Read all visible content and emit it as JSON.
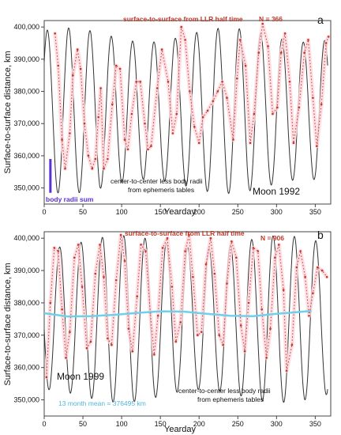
{
  "chart_data": [
    {
      "type": "line",
      "panel_label": "a",
      "title": "Moon 1992",
      "xlabel": "Yearday",
      "ylabel": "Surface-to-surface distance, km",
      "xlim": [
        0,
        370
      ],
      "ylim": [
        345000,
        402000
      ],
      "xticks": [
        "0",
        "50",
        "100",
        "150",
        "200",
        "250",
        "300",
        "350"
      ],
      "yticks": [
        "350,000",
        "360,000",
        "370,000",
        "380,000",
        "390,000",
        "400,000"
      ],
      "llr_label": "surface-to-surface from LLR half time",
      "n_label": "N = 366",
      "ephem_label_lines": [
        "center-to-center less body radii",
        "from ephemeris tables"
      ],
      "radii_label": "body radii sum",
      "radii_bar": {
        "x": 8,
        "y_from": 348500,
        "y_to": 359000
      },
      "series": [
        {
          "model": {
            "mean": 374000,
            "amp": 23500,
            "period": 27.55,
            "phase": 4,
            "amp_mod": 2200,
            "amp_mod_period": 206,
            "amp_mod_phase": 30
          }
        },
        {
          "points": [
            [
              14,
              398000
            ],
            [
              18,
              388000
            ],
            [
              23,
              365000
            ],
            [
              27,
              356000
            ],
            [
              33,
              367000
            ],
            [
              37,
              385000
            ],
            [
              43,
              393000
            ],
            [
              47,
              387000
            ],
            [
              52,
              370000
            ],
            [
              57,
              360000
            ],
            [
              62,
              356000
            ],
            [
              66,
              359000
            ],
            [
              70,
              372000
            ],
            [
              73,
              381000
            ],
            [
              77,
              356000
            ],
            [
              82,
              359000
            ],
            [
              88,
              376000
            ],
            [
              93,
              388000
            ],
            [
              98,
              387000
            ],
            [
              104,
              365000
            ],
            [
              108,
              362000
            ],
            [
              113,
              373000
            ],
            [
              119,
              383000
            ],
            [
              124,
              383000
            ],
            [
              130,
              370000
            ],
            [
              134,
              362000
            ],
            [
              138,
              363000
            ],
            [
              146,
              381000
            ],
            [
              152,
              393000
            ],
            [
              160,
              383000
            ],
            [
              166,
              367000
            ],
            [
              171,
              373000
            ],
            [
              177,
              400000
            ],
            [
              182,
              396000
            ],
            [
              188,
              380000
            ],
            [
              194,
              369000
            ],
            [
              200,
              364000
            ],
            [
              205,
              372000
            ],
            [
              211,
              374000
            ],
            [
              218,
              377000
            ],
            [
              224,
              380000
            ],
            [
              230,
              383000
            ],
            [
              236,
              378000
            ],
            [
              244,
              365000
            ],
            [
              249,
              384000
            ],
            [
              253,
              396000
            ],
            [
              260,
              388000
            ],
            [
              266,
              364000
            ],
            [
              271,
              373000
            ],
            [
              277,
              392000
            ],
            [
              282,
              401000
            ],
            [
              289,
              394000
            ],
            [
              295,
              373000
            ],
            [
              301,
              375000
            ],
            [
              306,
              392000
            ],
            [
              311,
              398000
            ],
            [
              317,
              383000
            ],
            [
              322,
              364000
            ],
            [
              329,
              375000
            ],
            [
              336,
              392000
            ],
            [
              341,
              396000
            ],
            [
              347,
              378000
            ],
            [
              352,
              363000
            ],
            [
              358,
              376000
            ],
            [
              364,
              395000
            ],
            [
              367,
              397000
            ]
          ]
        }
      ]
    },
    {
      "type": "line",
      "panel_label": "b",
      "title": "Moon 1999",
      "xlabel": "Yearday",
      "ylabel": "Surface-to-surface distance, km",
      "xlim": [
        0,
        370
      ],
      "ylim": [
        345000,
        402000
      ],
      "xticks": [
        "0",
        "50",
        "100",
        "150",
        "200",
        "250",
        "300",
        "350"
      ],
      "yticks": [
        "350,000",
        "360,000",
        "370,000",
        "380,000",
        "390,000",
        "400,000"
      ],
      "llr_label": "surface-to-surface from LLR half time",
      "n_label": "N = 906",
      "ephem_label_lines": [
        "center-to-center less body radii",
        "from ephemeris tables"
      ],
      "mean_label": "13 month mean = 376495 km",
      "series": [
        {
          "model": {
            "mean": 375000,
            "amp": 23800,
            "period": 27.55,
            "phase": 20,
            "amp_mod": 2000,
            "amp_mod_period": 206,
            "amp_mod_phase": 100
          }
        },
        {
          "points": [
            [
              3,
              357000
            ],
            [
              8,
              380000
            ],
            [
              13,
              397000
            ],
            [
              18,
              396000
            ],
            [
              23,
              378000
            ],
            [
              28,
              363000
            ],
            [
              33,
              371000
            ],
            [
              39,
              394000
            ],
            [
              44,
              398000
            ],
            [
              49,
              385000
            ],
            [
              55,
              366000
            ],
            [
              60,
              368000
            ],
            [
              66,
              389000
            ],
            [
              72,
              398000
            ],
            [
              77,
              388000
            ],
            [
              82,
              369000
            ],
            [
              87,
              367000
            ],
            [
              93,
              387000
            ],
            [
              99,
              401000
            ],
            [
              104,
              393000
            ],
            [
              109,
              372000
            ],
            [
              114,
              365000
            ],
            [
              120,
              382000
            ],
            [
              125,
              398000
            ],
            [
              131,
              396000
            ],
            [
              137,
              377000
            ],
            [
              142,
              364000
            ],
            [
              147,
              376000
            ],
            [
              153,
              397000
            ],
            [
              159,
              400000
            ],
            [
              165,
              385000
            ],
            [
              170,
              368000
            ],
            [
              176,
              374000
            ],
            [
              182,
              396000
            ],
            [
              187,
              401000
            ],
            [
              192,
              388000
            ],
            [
              198,
              370000
            ],
            [
              203,
              371000
            ],
            [
              209,
              392000
            ],
            [
              215,
              400000
            ],
            [
              220,
              389000
            ],
            [
              226,
              370000
            ],
            [
              231,
              367000
            ],
            [
              236,
              386000
            ],
            [
              242,
              399000
            ],
            [
              248,
              394000
            ],
            [
              254,
              373000
            ],
            [
              259,
              365000
            ],
            [
              264,
              380000
            ],
            [
              270,
              397000
            ],
            [
              276,
              396000
            ],
            [
              281,
              378000
            ],
            [
              287,
              363000
            ],
            [
              292,
              372000
            ],
            [
              298,
              394000
            ],
            [
              303,
              398000
            ],
            [
              309,
              384000
            ],
            [
              313,
              359000
            ],
            [
              320,
              367000
            ],
            [
              326,
              391000
            ],
            [
              331,
              396000
            ],
            [
              337,
              388000
            ],
            [
              342,
              376000
            ],
            [
              347,
              383000
            ],
            [
              353,
              391000
            ],
            [
              359,
              390000
            ],
            [
              365,
              388000
            ]
          ]
        },
        {
          "name": "13 month mean",
          "points": [
            [
              0,
              376800
            ],
            [
              30,
              375800
            ],
            [
              60,
              375900
            ],
            [
              90,
              376300
            ],
            [
              120,
              376900
            ],
            [
              150,
              377400
            ],
            [
              180,
              377300
            ],
            [
              210,
              376600
            ],
            [
              240,
              376000
            ],
            [
              270,
              375900
            ],
            [
              300,
              376600
            ],
            [
              330,
              377200
            ],
            [
              345,
              377500
            ]
          ]
        }
      ]
    }
  ],
  "colors": {
    "model": "#333333",
    "llr": "#c0392b",
    "llr_highlight": "#ffd6dc",
    "mean": "#6fd0ea",
    "radii_bar": "#5b2fd6",
    "radii_label": "#5b2fd6",
    "mean_label": "#4fb8dd",
    "axes": "#444444",
    "grid_tick": "#666666"
  }
}
